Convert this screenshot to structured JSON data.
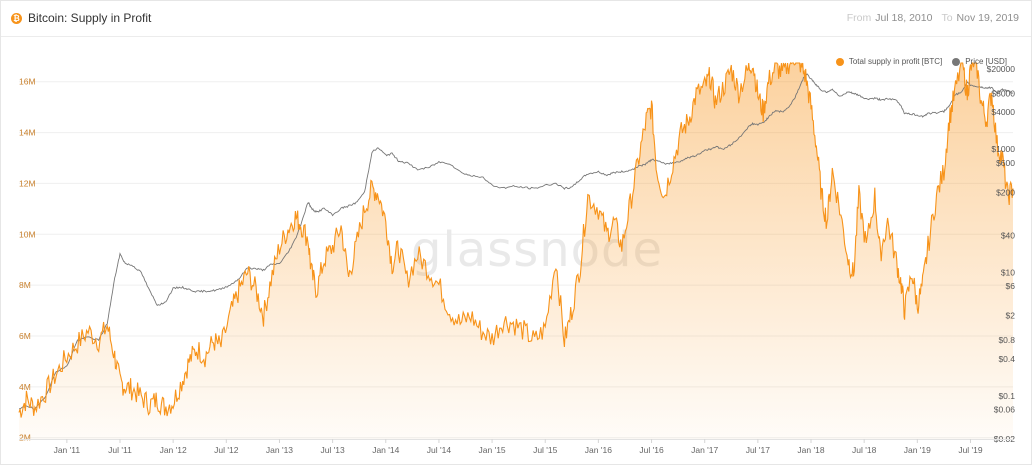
{
  "header": {
    "coin_icon": "bitcoin-icon",
    "coin_glyph": "₿",
    "title": "Bitcoin: Supply in Profit",
    "from_label": "From",
    "from_value": "Jul 18, 2010",
    "to_label": "To",
    "to_value": "Nov 19, 2019"
  },
  "watermark": "glassnode",
  "colors": {
    "supply": "#f7931a",
    "price": "#777777",
    "axis_left": "#c9812d",
    "axis_right": "#555555",
    "grid": "#efefef"
  },
  "chart_data": {
    "type": "line",
    "x_ticks": [
      "Jan '11",
      "Jul '11",
      "Jan '12",
      "Jul '12",
      "Jan '13",
      "Jul '13",
      "Jan '14",
      "Jul '14",
      "Jan '15",
      "Jul '15",
      "Jan '16",
      "Jul '16",
      "Jan '17",
      "Jul '17",
      "Jan '18",
      "Jul '18",
      "Jan '19",
      "Jul '19"
    ],
    "x_tick_years": [
      2011.0,
      2011.5,
      2012.0,
      2012.5,
      2013.0,
      2013.5,
      2014.0,
      2014.5,
      2015.0,
      2015.5,
      2016.0,
      2016.5,
      2017.0,
      2017.5,
      2018.0,
      2018.5,
      2019.0,
      2019.5
    ],
    "x_range": [
      2010.55,
      2019.9
    ],
    "y_left": {
      "label": "",
      "ticks": [
        "2M",
        "4M",
        "6M",
        "8M",
        "10M",
        "12M",
        "14M",
        "16M"
      ],
      "tick_values": [
        2,
        4,
        6,
        8,
        10,
        12,
        14,
        16
      ],
      "range": [
        1.95,
        16.5
      ]
    },
    "y_right": {
      "label": "",
      "scale": "log",
      "ticks": [
        "$0.02",
        "$0.06",
        "$0.1",
        "$0.4",
        "$0.8",
        "$2",
        "$6",
        "$10",
        "$40",
        "$200",
        "$600",
        "$1000",
        "$4000",
        "$8000",
        "$20000"
      ],
      "tick_values": [
        0.02,
        0.06,
        0.1,
        0.4,
        0.8,
        2,
        6,
        10,
        40,
        200,
        600,
        1000,
        4000,
        8000,
        20000
      ]
    },
    "legend_position": "top-right",
    "series": [
      {
        "name": "Total supply in profit [BTC]",
        "axis": "left",
        "style": "area",
        "x": [
          2010.55,
          2010.62,
          2010.7,
          2010.8,
          2010.9,
          2011.0,
          2011.1,
          2011.2,
          2011.3,
          2011.38,
          2011.45,
          2011.5,
          2011.55,
          2011.62,
          2011.7,
          2011.78,
          2011.85,
          2011.92,
          2012.0,
          2012.08,
          2012.15,
          2012.22,
          2012.3,
          2012.38,
          2012.45,
          2012.55,
          2012.62,
          2012.7,
          2012.78,
          2012.85,
          2012.92,
          2013.0,
          2013.08,
          2013.15,
          2013.2,
          2013.27,
          2013.3,
          2013.35,
          2013.42,
          2013.5,
          2013.58,
          2013.65,
          2013.72,
          2013.8,
          2013.87,
          2013.93,
          2014.0,
          2014.06,
          2014.12,
          2014.2,
          2014.3,
          2014.4,
          2014.5,
          2014.6,
          2014.7,
          2014.8,
          2014.9,
          2015.0,
          2015.1,
          2015.2,
          2015.3,
          2015.4,
          2015.5,
          2015.6,
          2015.68,
          2015.75,
          2015.83,
          2015.9,
          2016.0,
          2016.08,
          2016.15,
          2016.22,
          2016.3,
          2016.38,
          2016.45,
          2016.5,
          2016.55,
          2016.62,
          2016.7,
          2016.78,
          2016.85,
          2016.92,
          2017.0,
          2017.05,
          2017.1,
          2017.18,
          2017.25,
          2017.32,
          2017.4,
          2017.45,
          2017.5,
          2017.55,
          2017.6,
          2017.67,
          2017.73,
          2017.8,
          2017.85,
          2017.9,
          2017.95,
          2018.0,
          2018.05,
          2018.1,
          2018.15,
          2018.2,
          2018.27,
          2018.35,
          2018.4,
          2018.45,
          2018.52,
          2018.6,
          2018.65,
          2018.72,
          2018.8,
          2018.85,
          2018.88,
          2018.95,
          2019.0,
          2019.05,
          2019.1,
          2019.18,
          2019.25,
          2019.3,
          2019.35,
          2019.42,
          2019.47,
          2019.5,
          2019.55,
          2019.6,
          2019.65,
          2019.7,
          2019.75,
          2019.8,
          2019.85,
          2019.9
        ],
        "values": [
          3.0,
          3.5,
          3.2,
          3.8,
          4.5,
          5.2,
          5.7,
          6.2,
          5.8,
          6.4,
          5.2,
          4.2,
          4.0,
          3.9,
          3.6,
          3.3,
          3.5,
          3.2,
          3.4,
          4.2,
          5.0,
          5.5,
          5.2,
          5.8,
          5.6,
          7.0,
          7.8,
          8.5,
          7.8,
          6.8,
          8.2,
          9.5,
          10.2,
          10.7,
          10.4,
          9.8,
          8.5,
          7.8,
          9.0,
          9.5,
          10.3,
          8.3,
          9.5,
          11.0,
          11.8,
          11.6,
          10.5,
          8.8,
          9.5,
          8.2,
          9.2,
          8.6,
          8.0,
          7.0,
          6.5,
          6.8,
          6.2,
          5.9,
          6.6,
          6.5,
          6.2,
          5.8,
          6.3,
          9.0,
          5.8,
          7.0,
          8.8,
          11.5,
          11.0,
          10.0,
          10.5,
          9.5,
          11.2,
          13.0,
          14.5,
          15.0,
          12.5,
          11.5,
          12.8,
          14.0,
          14.5,
          15.5,
          15.8,
          16.2,
          15.2,
          15.8,
          16.5,
          15.6,
          16.4,
          16.8,
          15.5,
          14.8,
          16.0,
          16.6,
          16.3,
          16.8,
          17.0,
          16.7,
          16.2,
          15.0,
          13.5,
          11.5,
          10.5,
          12.5,
          11.0,
          9.0,
          8.4,
          11.5,
          9.5,
          11.5,
          9.2,
          10.5,
          9.0,
          8.0,
          7.0,
          8.5,
          7.2,
          8.0,
          9.5,
          11.5,
          12.5,
          14.5,
          15.5,
          16.8,
          15.5,
          16.5,
          17.0,
          15.2,
          14.5,
          15.6,
          13.5,
          13.0,
          11.5,
          11.8
        ]
      },
      {
        "name": "Price [USD]",
        "axis": "right",
        "style": "line",
        "x": [
          2010.55,
          2010.62,
          2010.7,
          2010.8,
          2010.9,
          2011.0,
          2011.1,
          2011.2,
          2011.3,
          2011.38,
          2011.45,
          2011.5,
          2011.55,
          2011.62,
          2011.7,
          2011.78,
          2011.85,
          2011.92,
          2012.0,
          2012.08,
          2012.15,
          2012.22,
          2012.3,
          2012.38,
          2012.45,
          2012.55,
          2012.62,
          2012.7,
          2012.78,
          2012.85,
          2012.92,
          2013.0,
          2013.08,
          2013.15,
          2013.2,
          2013.27,
          2013.3,
          2013.35,
          2013.42,
          2013.5,
          2013.58,
          2013.65,
          2013.72,
          2013.8,
          2013.87,
          2013.93,
          2014.0,
          2014.06,
          2014.12,
          2014.2,
          2014.3,
          2014.4,
          2014.5,
          2014.6,
          2014.7,
          2014.8,
          2014.9,
          2015.0,
          2015.1,
          2015.2,
          2015.3,
          2015.4,
          2015.5,
          2015.6,
          2015.68,
          2015.75,
          2015.83,
          2015.9,
          2016.0,
          2016.08,
          2016.15,
          2016.22,
          2016.3,
          2016.38,
          2016.45,
          2016.5,
          2016.55,
          2016.62,
          2016.7,
          2016.78,
          2016.85,
          2016.92,
          2017.0,
          2017.05,
          2017.1,
          2017.18,
          2017.25,
          2017.32,
          2017.4,
          2017.45,
          2017.5,
          2017.55,
          2017.6,
          2017.67,
          2017.73,
          2017.8,
          2017.85,
          2017.9,
          2017.95,
          2018.0,
          2018.05,
          2018.1,
          2018.15,
          2018.2,
          2018.27,
          2018.35,
          2018.4,
          2018.45,
          2018.52,
          2018.6,
          2018.65,
          2018.72,
          2018.8,
          2018.85,
          2018.88,
          2018.95,
          2019.0,
          2019.05,
          2019.1,
          2019.18,
          2019.25,
          2019.3,
          2019.35,
          2019.42,
          2019.47,
          2019.5,
          2019.55,
          2019.6,
          2019.65,
          2019.7,
          2019.75,
          2019.8,
          2019.85,
          2019.9
        ],
        "values": [
          0.06,
          0.07,
          0.06,
          0.1,
          0.25,
          0.3,
          0.8,
          0.9,
          0.8,
          1.5,
          8.0,
          20.0,
          14.0,
          13.0,
          10.0,
          5.0,
          3.0,
          3.2,
          5.5,
          5.8,
          5.3,
          4.9,
          5.0,
          5.1,
          5.4,
          6.5,
          8.0,
          12.0,
          11.5,
          11.0,
          13.5,
          14.0,
          21.0,
          35.0,
          60.0,
          140.0,
          110.0,
          95.0,
          110.0,
          85.0,
          110.0,
          120.0,
          135.0,
          200.0,
          900.0,
          1050.0,
          800.0,
          850.0,
          650.0,
          600.0,
          470.0,
          500.0,
          620.0,
          590.0,
          430.0,
          370.0,
          360.0,
          260.0,
          235.0,
          250.0,
          240.0,
          230.0,
          260.0,
          280.0,
          230.0,
          240.0,
          325.0,
          400.0,
          430.0,
          380.0,
          420.0,
          430.0,
          455.0,
          530.0,
          580.0,
          680.0,
          650.0,
          580.0,
          600.0,
          650.0,
          740.0,
          780.0,
          970.0,
          1000.0,
          1100.0,
          1000.0,
          1200.0,
          1500.0,
          2200.0,
          2600.0,
          2500.0,
          2700.0,
          3300.0,
          4300.0,
          4000.0,
          5000.0,
          7000.0,
          11000.0,
          17000.0,
          14000.0,
          11000.0,
          9000.0,
          8500.0,
          9500.0,
          7000.0,
          8500.0,
          8000.0,
          7500.0,
          6500.0,
          6700.0,
          6400.0,
          6500.0,
          6300.0,
          5000.0,
          3800.0,
          3700.0,
          3600.0,
          3400.0,
          3800.0,
          3900.0,
          4100.0,
          5000.0,
          7500.0,
          8500.0,
          12000.0,
          11000.0,
          10500.0,
          10200.0,
          9800.0,
          10000.0,
          8200.0,
          9200.0,
          8800.0,
          8200.0
        ]
      }
    ]
  }
}
